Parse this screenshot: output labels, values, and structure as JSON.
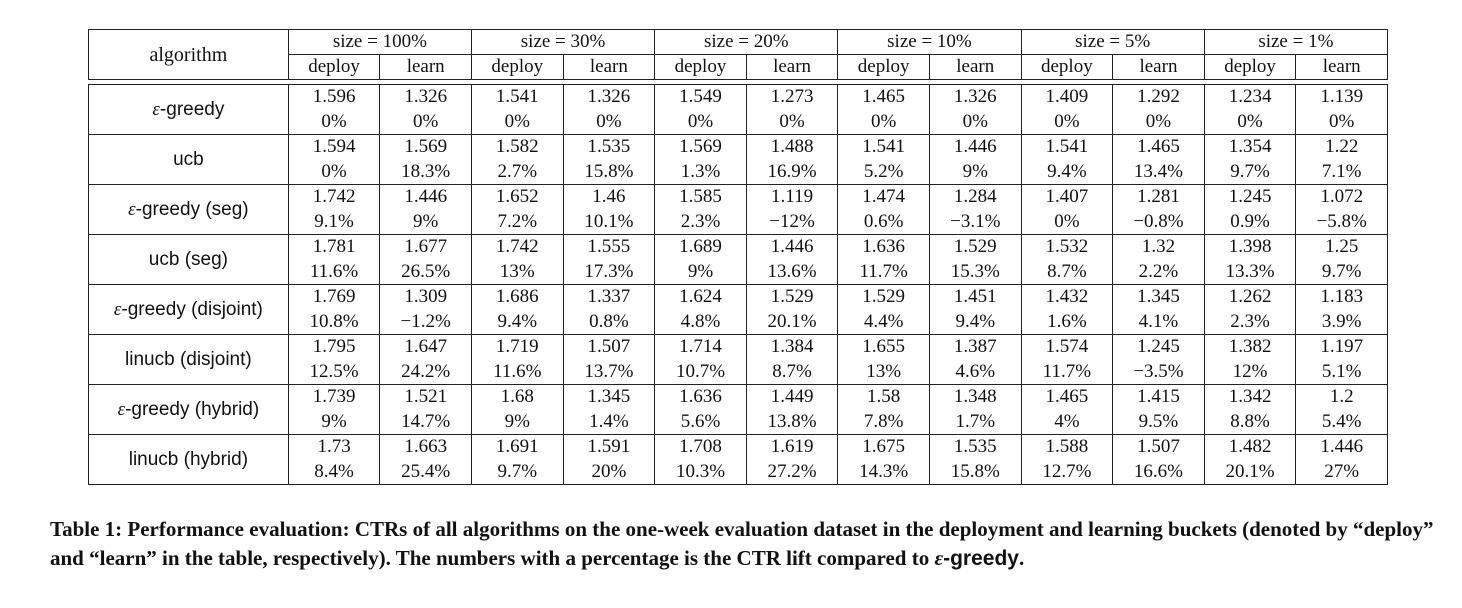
{
  "table": {
    "header": {
      "algorithm_label": "algorithm",
      "groups": [
        "size = 100%",
        "size = 30%",
        "size = 20%",
        "size = 10%",
        "size = 5%",
        "size = 1%"
      ],
      "sub": [
        "deploy",
        "learn"
      ]
    },
    "rows": [
      {
        "name_prefix": "ε",
        "name": "-greedy",
        "cells": [
          [
            "1.596",
            "0%"
          ],
          [
            "1.326",
            "0%"
          ],
          [
            "1.541",
            "0%"
          ],
          [
            "1.326",
            "0%"
          ],
          [
            "1.549",
            "0%"
          ],
          [
            "1.273",
            "0%"
          ],
          [
            "1.465",
            "0%"
          ],
          [
            "1.326",
            "0%"
          ],
          [
            "1.409",
            "0%"
          ],
          [
            "1.292",
            "0%"
          ],
          [
            "1.234",
            "0%"
          ],
          [
            "1.139",
            "0%"
          ]
        ]
      },
      {
        "name_prefix": "",
        "name": "ucb",
        "cells": [
          [
            "1.594",
            "0%"
          ],
          [
            "1.569",
            "18.3%"
          ],
          [
            "1.582",
            "2.7%"
          ],
          [
            "1.535",
            "15.8%"
          ],
          [
            "1.569",
            "1.3%"
          ],
          [
            "1.488",
            "16.9%"
          ],
          [
            "1.541",
            "5.2%"
          ],
          [
            "1.446",
            "9%"
          ],
          [
            "1.541",
            "9.4%"
          ],
          [
            "1.465",
            "13.4%"
          ],
          [
            "1.354",
            "9.7%"
          ],
          [
            "1.22",
            "7.1%"
          ]
        ]
      },
      {
        "name_prefix": "ε",
        "name": "-greedy (seg)",
        "cells": [
          [
            "1.742",
            "9.1%"
          ],
          [
            "1.446",
            "9%"
          ],
          [
            "1.652",
            "7.2%"
          ],
          [
            "1.46",
            "10.1%"
          ],
          [
            "1.585",
            "2.3%"
          ],
          [
            "1.119",
            "−12%"
          ],
          [
            "1.474",
            "0.6%"
          ],
          [
            "1.284",
            "−3.1%"
          ],
          [
            "1.407",
            "0%"
          ],
          [
            "1.281",
            "−0.8%"
          ],
          [
            "1.245",
            "0.9%"
          ],
          [
            "1.072",
            "−5.8%"
          ]
        ]
      },
      {
        "name_prefix": "",
        "name": "ucb (seg)",
        "cells": [
          [
            "1.781",
            "11.6%"
          ],
          [
            "1.677",
            "26.5%"
          ],
          [
            "1.742",
            "13%"
          ],
          [
            "1.555",
            "17.3%"
          ],
          [
            "1.689",
            "9%"
          ],
          [
            "1.446",
            "13.6%"
          ],
          [
            "1.636",
            "11.7%"
          ],
          [
            "1.529",
            "15.3%"
          ],
          [
            "1.532",
            "8.7%"
          ],
          [
            "1.32",
            "2.2%"
          ],
          [
            "1.398",
            "13.3%"
          ],
          [
            "1.25",
            "9.7%"
          ]
        ]
      },
      {
        "name_prefix": "ε",
        "name": "-greedy (disjoint)",
        "cells": [
          [
            "1.769",
            "10.8%"
          ],
          [
            "1.309",
            "−1.2%"
          ],
          [
            "1.686",
            "9.4%"
          ],
          [
            "1.337",
            "0.8%"
          ],
          [
            "1.624",
            "4.8%"
          ],
          [
            "1.529",
            "20.1%"
          ],
          [
            "1.529",
            "4.4%"
          ],
          [
            "1.451",
            "9.4%"
          ],
          [
            "1.432",
            "1.6%"
          ],
          [
            "1.345",
            "4.1%"
          ],
          [
            "1.262",
            "2.3%"
          ],
          [
            "1.183",
            "3.9%"
          ]
        ]
      },
      {
        "name_prefix": "",
        "name": "linucb (disjoint)",
        "cells": [
          [
            "1.795",
            "12.5%"
          ],
          [
            "1.647",
            "24.2%"
          ],
          [
            "1.719",
            "11.6%"
          ],
          [
            "1.507",
            "13.7%"
          ],
          [
            "1.714",
            "10.7%"
          ],
          [
            "1.384",
            "8.7%"
          ],
          [
            "1.655",
            "13%"
          ],
          [
            "1.387",
            "4.6%"
          ],
          [
            "1.574",
            "11.7%"
          ],
          [
            "1.245",
            "−3.5%"
          ],
          [
            "1.382",
            "12%"
          ],
          [
            "1.197",
            "5.1%"
          ]
        ]
      },
      {
        "name_prefix": "ε",
        "name": "-greedy (hybrid)",
        "cells": [
          [
            "1.739",
            "9%"
          ],
          [
            "1.521",
            "14.7%"
          ],
          [
            "1.68",
            "9%"
          ],
          [
            "1.345",
            "1.4%"
          ],
          [
            "1.636",
            "5.6%"
          ],
          [
            "1.449",
            "13.8%"
          ],
          [
            "1.58",
            "7.8%"
          ],
          [
            "1.348",
            "1.7%"
          ],
          [
            "1.465",
            "4%"
          ],
          [
            "1.415",
            "9.5%"
          ],
          [
            "1.342",
            "8.8%"
          ],
          [
            "1.2",
            "5.4%"
          ]
        ]
      },
      {
        "name_prefix": "",
        "name": "linucb (hybrid)",
        "cells": [
          [
            "1.73",
            "8.4%"
          ],
          [
            "1.663",
            "25.4%"
          ],
          [
            "1.691",
            "9.7%"
          ],
          [
            "1.591",
            "20%"
          ],
          [
            "1.708",
            "10.3%"
          ],
          [
            "1.619",
            "27.2%"
          ],
          [
            "1.675",
            "14.3%"
          ],
          [
            "1.535",
            "15.8%"
          ],
          [
            "1.588",
            "12.7%"
          ],
          [
            "1.507",
            "16.6%"
          ],
          [
            "1.482",
            "20.1%"
          ],
          [
            "1.446",
            "27%"
          ]
        ]
      }
    ]
  },
  "caption": {
    "main": "Table 1: Performance evaluation: CTRs of all algorithms on the one-week evaluation dataset in the deployment and learning buckets (denoted by “deploy” and “learn” in the table, respectively). The numbers with a percentage is the CTR lift compared to ",
    "eps": "ε",
    "tail": "-greedy",
    "end": "."
  }
}
